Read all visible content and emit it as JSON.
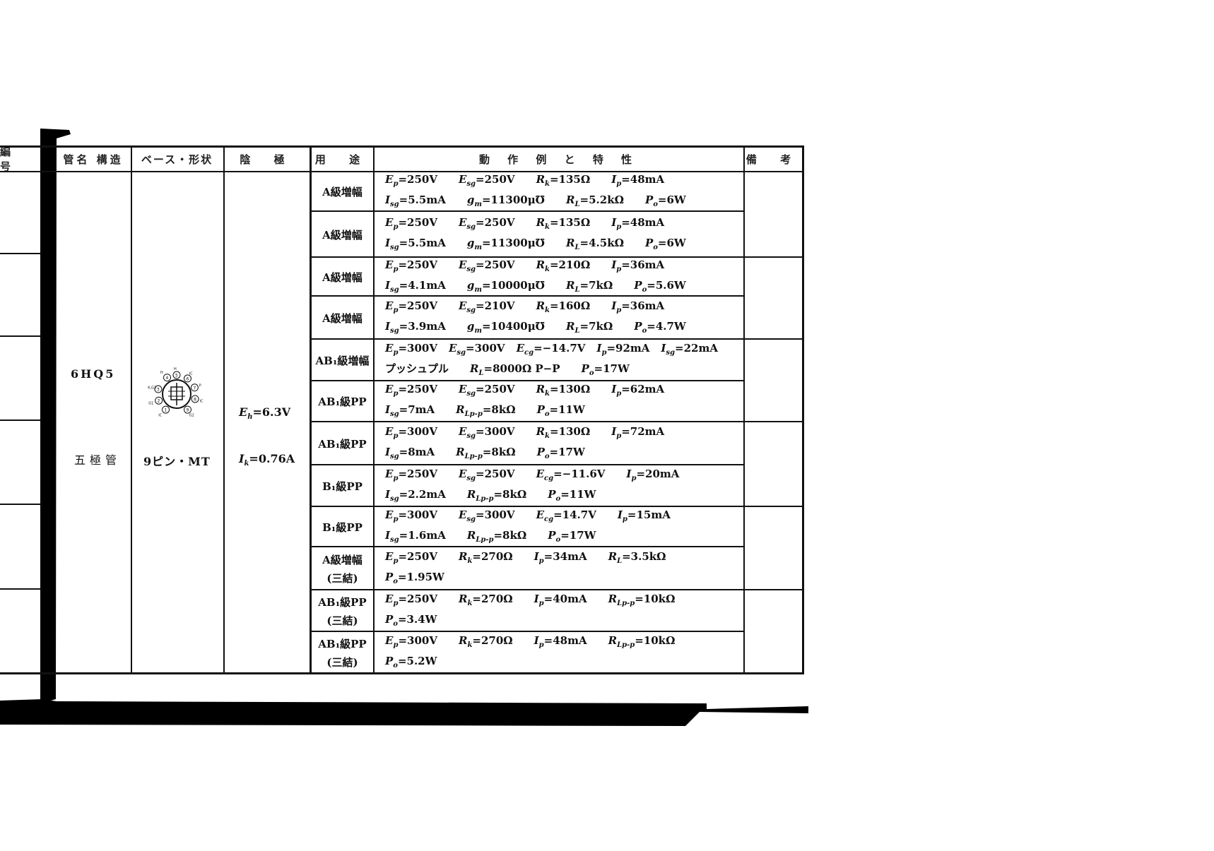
{
  "headers": [
    "編 号",
    "管名 構造",
    "ベース・形状",
    "陰 極",
    "用 途",
    "動 作 例 と 特 性",
    "備 考"
  ],
  "tube": {
    "name": "6HQ5",
    "type": "五極管",
    "base": "9ピン・MT",
    "heater_voltage": {
      "sym": "E",
      "sub": "h",
      "val": "=6.3V"
    },
    "heater_current": {
      "sym": "I",
      "sub": "k",
      "val": "=0.76A"
    },
    "pin_labels": [
      "IC",
      "G1",
      "K,G3",
      "H",
      "H",
      "IC",
      "P",
      "IC",
      "G2"
    ]
  },
  "rows": [
    {
      "use": [
        "A級増幅"
      ],
      "lines": [
        [
          [
            "E",
            "p",
            "=250V"
          ],
          [
            "E",
            "sg",
            "=250V"
          ],
          [
            "R",
            "k",
            "=135Ω"
          ],
          [
            "I",
            "p",
            "=48mA"
          ]
        ],
        [
          [
            "I",
            "sg",
            "=5.5mA"
          ],
          [
            "g",
            "m",
            "=11300μ℧"
          ],
          [
            "R",
            "L",
            "=5.2kΩ"
          ],
          [
            "P",
            "o",
            "=6W"
          ]
        ]
      ]
    },
    {
      "use": [
        "A級増幅"
      ],
      "lines": [
        [
          [
            "E",
            "p",
            "=250V"
          ],
          [
            "E",
            "sg",
            "=250V"
          ],
          [
            "R",
            "k",
            "=135Ω"
          ],
          [
            "I",
            "p",
            "=48mA"
          ]
        ],
        [
          [
            "I",
            "sg",
            "=5.5mA"
          ],
          [
            "g",
            "m",
            "=11300μ℧"
          ],
          [
            "R",
            "L",
            "=4.5kΩ"
          ],
          [
            "P",
            "o",
            "=6W"
          ]
        ]
      ]
    },
    {
      "use": [
        "A級増幅"
      ],
      "lines": [
        [
          [
            "E",
            "p",
            "=250V"
          ],
          [
            "E",
            "sg",
            "=250V"
          ],
          [
            "R",
            "k",
            "=210Ω"
          ],
          [
            "I",
            "p",
            "=36mA"
          ]
        ],
        [
          [
            "I",
            "sg",
            "=4.1mA"
          ],
          [
            "g",
            "m",
            "=10000μ℧"
          ],
          [
            "R",
            "L",
            "=7kΩ"
          ],
          [
            "P",
            "o",
            "=5.6W"
          ]
        ]
      ]
    },
    {
      "use": [
        "A級増幅"
      ],
      "lines": [
        [
          [
            "E",
            "p",
            "=250V"
          ],
          [
            "E",
            "sg",
            "=210V"
          ],
          [
            "R",
            "k",
            "=160Ω"
          ],
          [
            "I",
            "p",
            "=36mA"
          ]
        ],
        [
          [
            "I",
            "sg",
            "=3.9mA"
          ],
          [
            "g",
            "m",
            "=10400μ℧"
          ],
          [
            "R",
            "L",
            "=7kΩ"
          ],
          [
            "P",
            "o",
            "=4.7W"
          ]
        ]
      ]
    },
    {
      "use": [
        "AB₁級増幅"
      ],
      "lines": [
        [
          [
            "E",
            "p",
            "=300V"
          ],
          [
            "E",
            "sg",
            "=300V"
          ],
          [
            "E",
            "cg",
            "=−14.7V"
          ],
          [
            "I",
            "p",
            "=92mA"
          ],
          [
            "I",
            "sg",
            "=22mA"
          ]
        ],
        [
          [
            "",
            "",
            "プッシュプル"
          ],
          [
            "R",
            "L",
            "=8000Ω P−P"
          ],
          [
            "P",
            "o",
            "=17W"
          ]
        ]
      ]
    },
    {
      "use": [
        "AB₁級PP"
      ],
      "lines": [
        [
          [
            "E",
            "p",
            "=250V"
          ],
          [
            "E",
            "sg",
            "=250V"
          ],
          [
            "R",
            "k",
            "=130Ω"
          ],
          [
            "I",
            "p",
            "=62mA"
          ]
        ],
        [
          [
            "I",
            "sg",
            "=7mA"
          ],
          [
            "R",
            "Lp-p",
            "=8kΩ"
          ],
          [
            "P",
            "o",
            "=11W"
          ]
        ]
      ]
    },
    {
      "use": [
        "AB₁級PP"
      ],
      "lines": [
        [
          [
            "E",
            "p",
            "=300V"
          ],
          [
            "E",
            "sg",
            "=300V"
          ],
          [
            "R",
            "k",
            "=130Ω"
          ],
          [
            "I",
            "p",
            "=72mA"
          ]
        ],
        [
          [
            "I",
            "sg",
            "=8mA"
          ],
          [
            "R",
            "Lp-p",
            "=8kΩ"
          ],
          [
            "P",
            "o",
            "=17W"
          ]
        ]
      ]
    },
    {
      "use": [
        "B₁級PP"
      ],
      "lines": [
        [
          [
            "E",
            "p",
            "=250V"
          ],
          [
            "E",
            "sg",
            "=250V"
          ],
          [
            "E",
            "cg",
            "=−11.6V"
          ],
          [
            "I",
            "p",
            "=20mA"
          ]
        ],
        [
          [
            "I",
            "sg",
            "=2.2mA"
          ],
          [
            "R",
            "Lp-p",
            "=8kΩ"
          ],
          [
            "P",
            "o",
            "=11W"
          ]
        ]
      ]
    },
    {
      "use": [
        "B₁級PP"
      ],
      "lines": [
        [
          [
            "E",
            "p",
            "=300V"
          ],
          [
            "E",
            "sg",
            "=300V"
          ],
          [
            "E",
            "cg",
            "=14.7V"
          ],
          [
            "I",
            "p",
            "=15mA"
          ]
        ],
        [
          [
            "I",
            "sg",
            "=1.6mA"
          ],
          [
            "R",
            "Lp-p",
            "=8kΩ"
          ],
          [
            "P",
            "o",
            "=17W"
          ]
        ]
      ]
    },
    {
      "use": [
        "A級増幅",
        "(三結)"
      ],
      "lines": [
        [
          [
            "E",
            "p",
            "=250V"
          ],
          [
            "R",
            "k",
            "=270Ω"
          ],
          [
            "I",
            "p",
            "=34mA"
          ],
          [
            "R",
            "L",
            "=3.5kΩ"
          ]
        ],
        [
          [
            "P",
            "o",
            "=1.95W"
          ]
        ]
      ]
    },
    {
      "use": [
        "AB₁級PP",
        "(三結)"
      ],
      "lines": [
        [
          [
            "E",
            "p",
            "=250V"
          ],
          [
            "R",
            "k",
            "=270Ω"
          ],
          [
            "I",
            "p",
            "=40mA"
          ],
          [
            "R",
            "Lp-p",
            "=10kΩ"
          ]
        ],
        [
          [
            "P",
            "o",
            "=3.4W"
          ]
        ]
      ]
    },
    {
      "use": [
        "AB₁級PP",
        "(三結)"
      ],
      "lines": [
        [
          [
            "E",
            "p",
            "=300V"
          ],
          [
            "R",
            "k",
            "=270Ω"
          ],
          [
            "I",
            "p",
            "=48mA"
          ],
          [
            "R",
            "Lp-p",
            "=10kΩ"
          ]
        ],
        [
          [
            "P",
            "o",
            "=5.2W"
          ]
        ]
      ]
    }
  ]
}
